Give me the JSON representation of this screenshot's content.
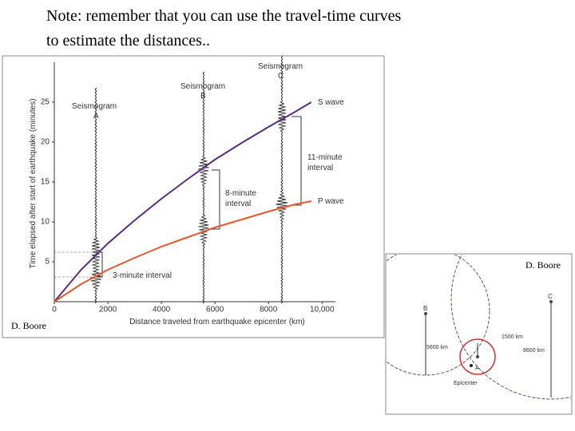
{
  "note": {
    "line1": "Note: remember that you can use the travel-time curves",
    "line2": "to estimate the distances.."
  },
  "chart_data": {
    "type": "line",
    "x_label": "Distance traveled from earthquake epicenter (km)",
    "y_label": "Time elapsed after start of earthquake (minutes)",
    "x": [
      0,
      1000,
      2000,
      3000,
      4000,
      5000,
      6000,
      7000,
      8000,
      9000,
      9600
    ],
    "series": [
      {
        "name": "S wave",
        "color": "#5b2a86",
        "values": [
          0,
          4,
          7.3,
          10.2,
          12.9,
          15.4,
          17.8,
          19.9,
          21.9,
          23.8,
          25
        ]
      },
      {
        "name": "P wave",
        "color": "#e8582a",
        "values": [
          0,
          2.2,
          4,
          5.5,
          6.9,
          8.1,
          9.3,
          10.3,
          11.3,
          12.2,
          12.6
        ]
      }
    ],
    "xlim": [
      0,
      10500
    ],
    "ylim": [
      0,
      30
    ],
    "xticks": [
      0,
      2000,
      4000,
      6000,
      8000,
      {
        "value": 10000,
        "label": "10,000"
      }
    ],
    "yticks": [
      5,
      10,
      15,
      20,
      25
    ],
    "annotations": [
      "Seismogram",
      "A",
      "Seismogram",
      "B",
      "Seismogram",
      "C",
      "8-minute",
      "interval",
      "11-minute",
      "interval",
      "3-minute interval"
    ],
    "credit": "D. Boore"
  },
  "diagram": {
    "labels": [
      "B",
      "C",
      "5600 km",
      "1500 km",
      "8600 km",
      "A",
      "Epicenter"
    ],
    "credit": "D. Boore"
  }
}
